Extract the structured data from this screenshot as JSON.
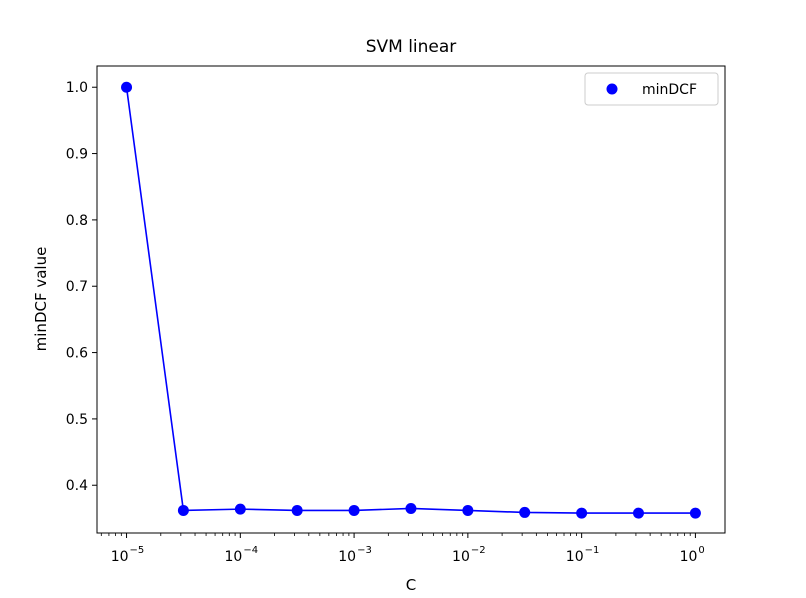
{
  "chart_data": {
    "type": "line",
    "title": "SVM linear",
    "xlabel": "C",
    "ylabel": "minDCF value",
    "x_scale": "log",
    "x": [
      1e-05,
      3.16e-05,
      0.0001,
      0.000316,
      0.001,
      0.00316,
      0.01,
      0.0316,
      0.1,
      0.316,
      1
    ],
    "series": [
      {
        "name": "minDCF",
        "values": [
          1.0,
          0.362,
          0.364,
          0.362,
          0.362,
          0.365,
          0.362,
          0.359,
          0.358,
          0.358,
          0.358
        ]
      }
    ],
    "xlim": [
      5.5e-06,
      1.82
    ],
    "ylim": [
      0.328,
      1.032
    ],
    "x_ticks": [
      {
        "value": 1e-05,
        "base": "10",
        "exp": "−5"
      },
      {
        "value": 0.0001,
        "base": "10",
        "exp": "−4"
      },
      {
        "value": 0.001,
        "base": "10",
        "exp": "−3"
      },
      {
        "value": 0.01,
        "base": "10",
        "exp": "−2"
      },
      {
        "value": 0.1,
        "base": "10",
        "exp": "−1"
      },
      {
        "value": 1,
        "base": "10",
        "exp": "0"
      }
    ],
    "y_ticks": [
      {
        "value": 0.4,
        "label": "0.4"
      },
      {
        "value": 0.5,
        "label": "0.5"
      },
      {
        "value": 0.6,
        "label": "0.6"
      },
      {
        "value": 0.7,
        "label": "0.7"
      },
      {
        "value": 0.8,
        "label": "0.8"
      },
      {
        "value": 0.9,
        "label": "0.9"
      },
      {
        "value": 1.0,
        "label": "1.0"
      }
    ],
    "grid": false,
    "legend_position": "top-right",
    "colors": {
      "series": "#0000ff",
      "axes": "#000000"
    }
  }
}
